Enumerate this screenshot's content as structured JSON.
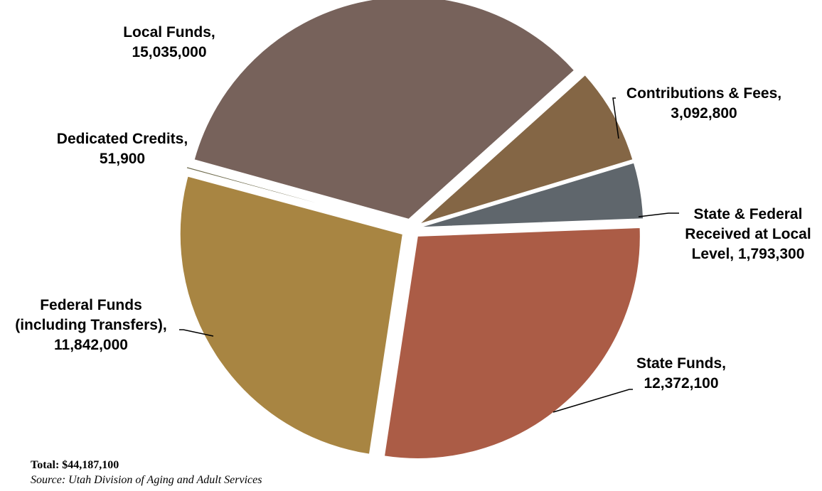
{
  "chart_data": {
    "type": "pie",
    "slices": [
      {
        "label_lines": [
          "Contributions & Fees,",
          "3,092,800"
        ],
        "value": 3092800,
        "color": "#846645"
      },
      {
        "label_lines": [
          "State & Federal",
          "Received at Local",
          "Level, 1,793,300"
        ],
        "value": 1793300,
        "color": "#5f666c"
      },
      {
        "label_lines": [
          "State Funds,",
          "12,372,100"
        ],
        "value": 12372100,
        "color": "#ab5c46"
      },
      {
        "label_lines": [
          "Federal Funds",
          "(including Transfers),",
          "11,842,000"
        ],
        "value": 11842000,
        "color": "#a88542"
      },
      {
        "label_lines": [
          "Dedicated Credits,",
          "51,900"
        ],
        "value": 51900,
        "color": "#6e6a4c"
      },
      {
        "label_lines": [
          "Local Funds,",
          "15,035,000"
        ],
        "value": 15035000,
        "color": "#77625b"
      }
    ]
  },
  "footer": {
    "total": "Total: $44,187,100",
    "source": "Source: Utah Division of Aging and Adult Services"
  }
}
